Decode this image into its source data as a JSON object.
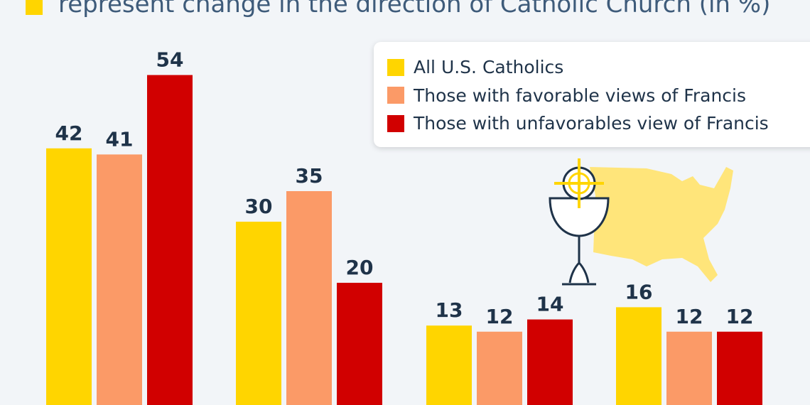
{
  "subtitle": "represent change in the direction of Catholic Church (in %)",
  "colors": {
    "background": "#f2f5f8",
    "label_text": "#1f3349"
  },
  "chart_data": {
    "type": "bar",
    "categories": [
      "",
      "",
      "",
      ""
    ],
    "series": [
      {
        "name": "All U.S. Catholics",
        "color": "#ffd500",
        "values": [
          42,
          30,
          13,
          16
        ]
      },
      {
        "name": "Those with favorable views of Francis",
        "color": "#fb9a67",
        "values": [
          41,
          35,
          12,
          12
        ]
      },
      {
        "name": "Those with unfavorables view of Francis",
        "color": "#d10000",
        "values": [
          54,
          20,
          14,
          12
        ]
      }
    ],
    "data_labels": true,
    "legend_position": "top-right",
    "grid": false
  },
  "icons": [
    "chalice-icon",
    "us-map-icon"
  ]
}
